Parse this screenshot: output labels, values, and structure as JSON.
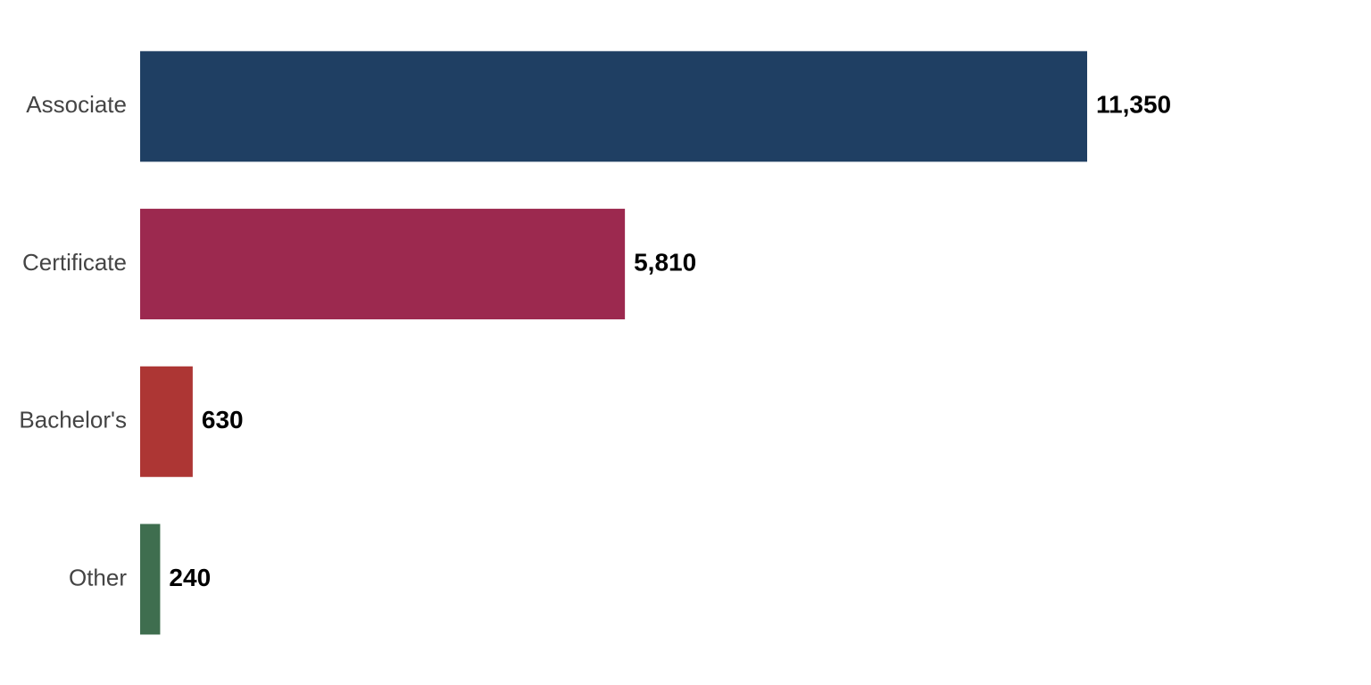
{
  "chart_data": {
    "type": "hbar",
    "categories": [
      "Associate",
      "Certificate",
      "Bachelor's",
      "Other"
    ],
    "values": [
      11350,
      5810,
      630,
      240
    ],
    "value_labels": [
      "11,350",
      "5,810",
      "630",
      "240"
    ],
    "colors": [
      "#1f3f63",
      "#9c294f",
      "#ad3634",
      "#3f6e4f"
    ]
  }
}
